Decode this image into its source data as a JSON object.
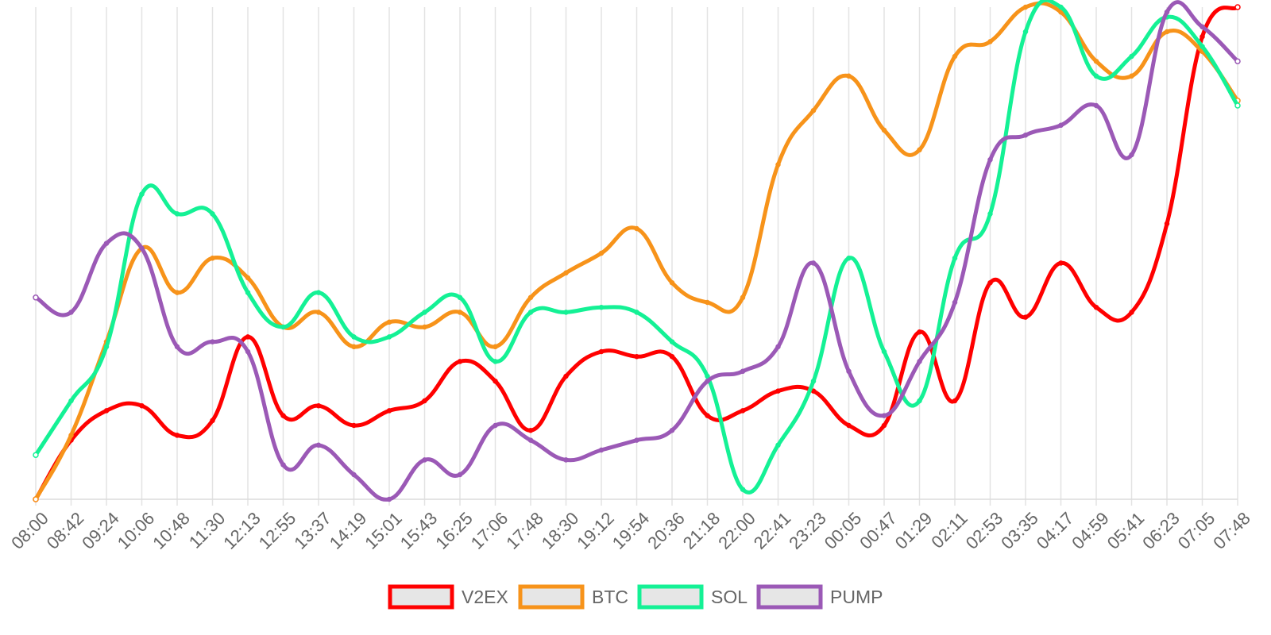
{
  "chart_data": {
    "type": "line",
    "title": "",
    "xlabel": "",
    "ylabel": "",
    "grid": true,
    "legend_position": "bottom",
    "categories": [
      "08:00",
      "08:42",
      "09:24",
      "10:06",
      "10:48",
      "11:30",
      "12:13",
      "12:55",
      "13:37",
      "14:19",
      "15:01",
      "15:43",
      "16:25",
      "17:06",
      "17:48",
      "18:30",
      "19:12",
      "19:54",
      "20:36",
      "21:18",
      "22:00",
      "22:41",
      "23:23",
      "00:05",
      "00:47",
      "01:29",
      "02:11",
      "02:53",
      "03:35",
      "04:17",
      "04:59",
      "05:41",
      "06:23",
      "07:05",
      "07:48"
    ],
    "ylim": [
      0,
      100
    ],
    "series": [
      {
        "name": "V2EX",
        "color": "#ff0000",
        "values": [
          0,
          12,
          18,
          19,
          13,
          16,
          33,
          17,
          19,
          15,
          18,
          20,
          28,
          24,
          14,
          25,
          30,
          29,
          29,
          17,
          18,
          22,
          22,
          15,
          15,
          34,
          20,
          44,
          37,
          48,
          39,
          38,
          56,
          94,
          100
        ]
      },
      {
        "name": "BTC",
        "color": "#f7931a",
        "values": [
          0,
          13,
          32,
          51,
          42,
          49,
          45,
          35,
          38,
          31,
          36,
          35,
          38,
          31,
          41,
          46,
          50,
          55,
          44,
          40,
          41,
          68,
          79,
          86,
          75,
          71,
          90,
          93,
          100,
          99,
          89,
          86,
          95,
          91,
          81
        ]
      },
      {
        "name": "SOL",
        "color": "#14f195",
        "values": [
          9,
          20,
          31,
          62,
          58,
          58,
          42,
          35,
          42,
          33,
          33,
          38,
          41,
          28,
          38,
          38,
          39,
          38,
          32,
          25,
          2,
          11,
          24,
          49,
          30,
          20,
          49,
          58,
          95,
          100,
          86,
          90,
          98,
          92,
          80
        ]
      },
      {
        "name": "PUMP",
        "color": "#9b59b6",
        "values": [
          41,
          38,
          52,
          51,
          31,
          32,
          30,
          7,
          11,
          5,
          0,
          8,
          5,
          15,
          12,
          8,
          10,
          12,
          14,
          24,
          26,
          31,
          48,
          26,
          17,
          28,
          40,
          69,
          74,
          76,
          80,
          70,
          99,
          96,
          89
        ]
      }
    ]
  }
}
